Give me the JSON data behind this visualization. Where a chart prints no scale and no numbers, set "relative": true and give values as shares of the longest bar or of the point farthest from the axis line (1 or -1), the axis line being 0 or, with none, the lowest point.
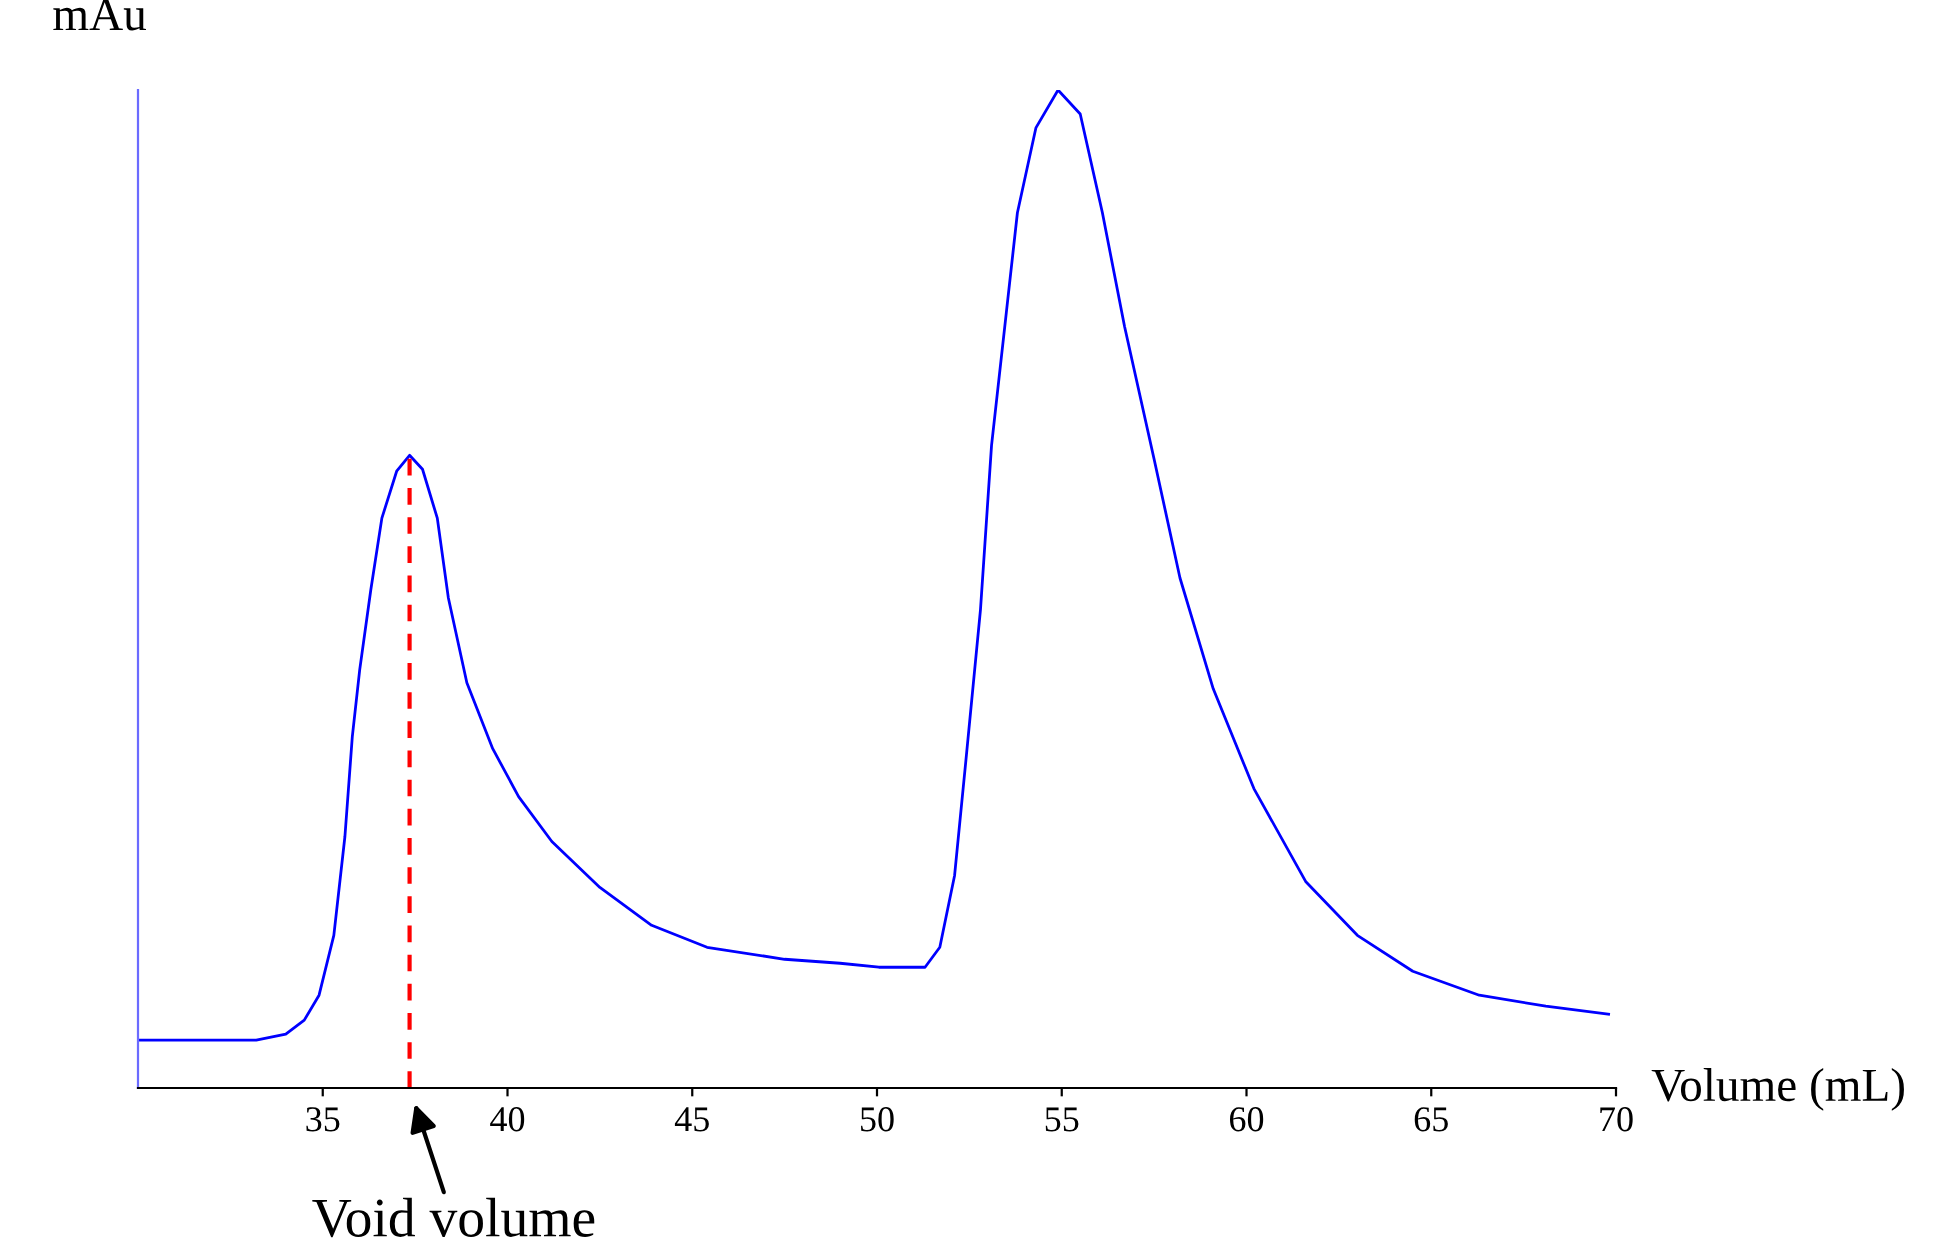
{
  "chart_data": {
    "type": "line",
    "xlabel": "Volume (mL)",
    "ylabel": "mAu",
    "relative": true,
    "xlim": [
      30,
      70
    ],
    "xticks": [
      35,
      40,
      45,
      50,
      55,
      60,
      65,
      70
    ],
    "grid": false,
    "marker": "none",
    "line_style": "solid",
    "series": [
      {
        "color": "#0000ff",
        "x": [
          30.0,
          33.2,
          34.0,
          34.5,
          34.9,
          35.3,
          35.6,
          35.8,
          36.0,
          36.3,
          36.6,
          37.0,
          37.35,
          37.7,
          38.1,
          38.4,
          38.9,
          39.6,
          40.3,
          41.2,
          42.5,
          43.9,
          45.4,
          47.5,
          49.0,
          50.05,
          51.3,
          51.7,
          52.1,
          52.4,
          52.8,
          53.1,
          53.5,
          53.8,
          54.3,
          54.9,
          55.5,
          56.1,
          56.7,
          57.5,
          58.2,
          59.1,
          60.2,
          61.6,
          63.0,
          64.5,
          66.3,
          68.1,
          69.8
        ],
        "values": [
          0.048,
          0.048,
          0.054,
          0.068,
          0.093,
          0.153,
          0.252,
          0.352,
          0.419,
          0.499,
          0.571,
          0.618,
          0.634,
          0.62,
          0.571,
          0.491,
          0.406,
          0.34,
          0.292,
          0.247,
          0.201,
          0.163,
          0.141,
          0.129,
          0.125,
          0.121,
          0.121,
          0.141,
          0.213,
          0.326,
          0.479,
          0.644,
          0.777,
          0.877,
          0.962,
          1.0,
          0.976,
          0.877,
          0.763,
          0.63,
          0.511,
          0.4,
          0.3,
          0.207,
          0.153,
          0.117,
          0.093,
          0.082,
          0.074
        ]
      }
    ],
    "ref_lines": [
      {
        "axis": "x",
        "value": 37.35,
        "color": "#ff0000",
        "line_style": "dashed"
      }
    ],
    "annotations": [
      {
        "text": "Void volume",
        "x": 37.35,
        "y": 0
      }
    ]
  }
}
